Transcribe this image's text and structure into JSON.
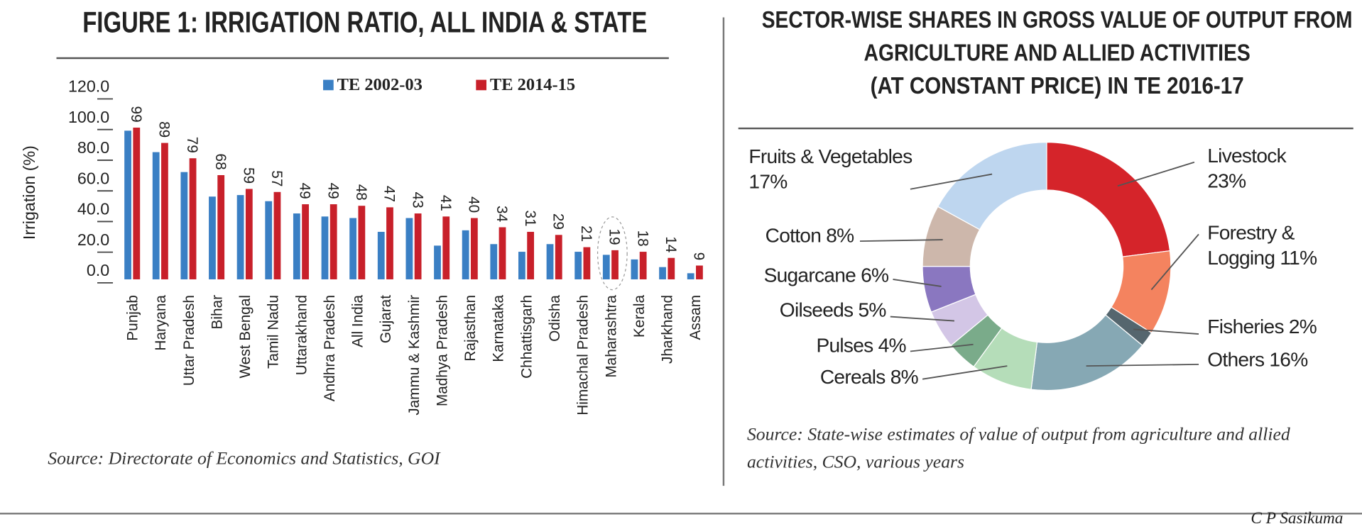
{
  "chart_data": [
    {
      "type": "bar",
      "title": "FIGURE 1: IRRIGATION RATIO,  ALL INDIA & STATE",
      "y_label": "Irrigation (%)",
      "categories": [
        "Punjab",
        "Haryana",
        "Uttar Pradesh",
        "Bihar",
        "West Bengal",
        "Tamil Nadu",
        "Uttarakhand",
        "Andhra Pradesh",
        "All India",
        "Gujarat",
        "Jammu & Kashmir",
        "Madhya Pradesh",
        "Rajasthan",
        "Karnataka",
        "Chhattisgarh",
        "Odisha",
        "Himachal Pradesh",
        "Maharashtra",
        "Kerala",
        "Jharkhand",
        "Assam"
      ],
      "series": [
        {
          "name": "TE 2002-03",
          "color": "#3a7fc4",
          "values": [
            97,
            83,
            70,
            54,
            55,
            51,
            43,
            41,
            40,
            31,
            40,
            22,
            32,
            23,
            18,
            23,
            18,
            16,
            13,
            8,
            4
          ]
        },
        {
          "name": "TE 2014-15",
          "color": "#c8202a",
          "values": [
            99,
            89,
            79,
            68,
            59,
            57,
            49,
            49,
            48,
            47,
            43,
            41,
            40,
            34,
            31,
            29,
            21,
            19,
            18,
            14,
            9
          ]
        }
      ],
      "ylim": [
        0,
        120
      ],
      "yticks": [
        {
          "value": 0,
          "label": "0.0"
        },
        {
          "value": 20,
          "label": "20.0"
        },
        {
          "value": 40,
          "label": "40.0"
        },
        {
          "value": 60,
          "label": "60.0"
        },
        {
          "value": 80,
          "label": "80.0"
        },
        {
          "value": 100,
          "label": "100.0"
        },
        {
          "value": 120,
          "label": "120.0"
        }
      ],
      "source": "Source: Directorate of Economics and Statistics, GOI"
    },
    {
      "type": "donut",
      "title": [
        "SECTOR-WISE SHARES IN GROSS VALUE OF OUTPUT FROM",
        "AGRICULTURE AND ALLIED  ACTIVITIES",
        "(AT CONSTANT PRICE) IN TE 2016-17"
      ],
      "categories": [
        "Livestock",
        "Forestry & Logging",
        "Fisheries",
        "Others",
        "Cereals",
        "Pulses",
        "Oilseeds",
        "Sugarcane",
        "Cotton",
        "Fruits & Vegetables"
      ],
      "values": [
        23,
        11,
        2,
        16,
        8,
        4,
        5,
        6,
        8,
        17
      ],
      "value_labels": [
        "23%",
        "11%",
        "2%",
        "16%",
        "8%",
        "4%",
        "5%",
        "6%",
        "8%",
        "17%"
      ],
      "colors": [
        "#d5242a",
        "#f4835f",
        "#55666e",
        "#86a8b4",
        "#b5ddb9",
        "#7aab8a",
        "#d3c6e6",
        "#8a77c0",
        "#cdb7ab",
        "#bed6ef"
      ],
      "source": "Source: State-wise estimates of value of output from agriculture and allied activities, CSO, various years"
    }
  ],
  "credit": "C P Sasikuma"
}
